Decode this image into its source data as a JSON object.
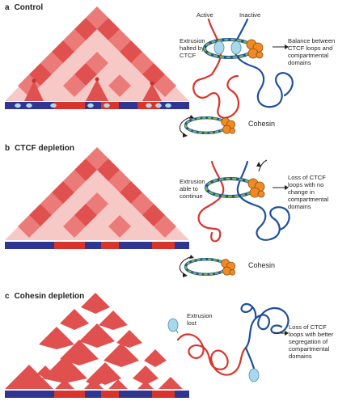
{
  "colors": {
    "contact_strong": "#e0504f",
    "contact_mid": "#ea7b78",
    "contact_light": "#f7c9c6",
    "compartment_a": "#d9342b",
    "compartment_b": "#2f3591",
    "active_chromatin": "#d9342b",
    "inactive_chromatin": "#1f4f9c",
    "ctcf": "#a8d8ea",
    "cohesin_green": "#7cba3f",
    "cohesin_orange": "#f08a24"
  },
  "panels": [
    {
      "letter": "a",
      "title": "Control",
      "labels": {
        "active": "Active",
        "inactive": "Inactive",
        "process": "Extrusion\nhalted by\nCTCF",
        "outcome": "Balance between\nCTCF loops and\ncompartmental\ndomains",
        "cohesin": "Cohesin"
      }
    },
    {
      "letter": "b",
      "title": "CTCF depletion",
      "labels": {
        "process": "Extrusion\nable to\ncontinue",
        "outcome": "Loss of CTCF\nloops with no\nchange in\ncompartmental\ndomains",
        "cohesin": "Cohesin"
      }
    },
    {
      "letter": "c",
      "title": "Cohesin depletion",
      "labels": {
        "process": "Extrusion\nlost",
        "outcome": "Loss of CTCF\nloops with better\nsegregation of\ncompartmental\ndomains"
      }
    }
  ]
}
